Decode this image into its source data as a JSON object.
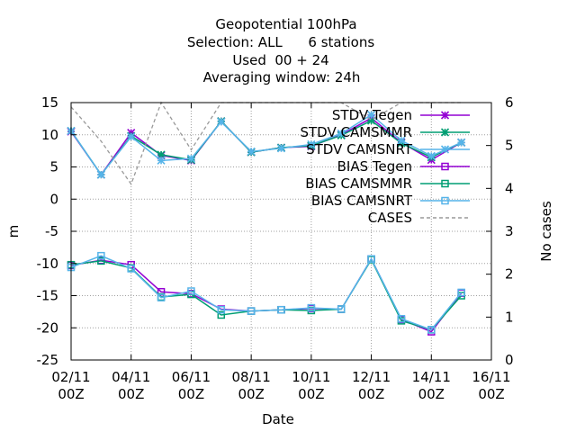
{
  "chart_data": {
    "type": "line",
    "title_lines": [
      "Geopotential 100hPa",
      "Selection: ALL      6 stations",
      "Used  00 + 24",
      "Averaging window: 24h"
    ],
    "xlabel": "Date",
    "ylabel": "m",
    "y2label": "No cases",
    "xlim": [
      0,
      14
    ],
    "ylim": [
      -25,
      15
    ],
    "y2lim": [
      0,
      6
    ],
    "grid": true,
    "legend_position": "top-right",
    "x_ticks": [
      {
        "x": 0,
        "line1": "02/11",
        "line2": "00Z"
      },
      {
        "x": 2,
        "line1": "04/11",
        "line2": "00Z"
      },
      {
        "x": 4,
        "line1": "06/11",
        "line2": "00Z"
      },
      {
        "x": 6,
        "line1": "08/11",
        "line2": "00Z"
      },
      {
        "x": 8,
        "line1": "10/11",
        "line2": "00Z"
      },
      {
        "x": 10,
        "line1": "12/11",
        "line2": "00Z"
      },
      {
        "x": 12,
        "line1": "14/11",
        "line2": "00Z"
      },
      {
        "x": 14,
        "line1": "16/11",
        "line2": "00Z"
      }
    ],
    "y_ticks": [
      15,
      10,
      5,
      0,
      -5,
      -10,
      -15,
      -20,
      -25
    ],
    "y2_ticks": [
      6,
      5,
      4,
      3,
      2,
      1,
      0
    ],
    "x": [
      0,
      1,
      2,
      3,
      4,
      5,
      6,
      7,
      8,
      9,
      10,
      11,
      12,
      13
    ],
    "series": [
      {
        "name": "STDV Tegen",
        "color": "#9400d3",
        "marker": "x",
        "axis": "y1",
        "values": [
          10.5,
          3.8,
          10.3,
          6.8,
          6.0,
          12.1,
          7.3,
          8.0,
          8.2,
          10.0,
          12.6,
          8.8,
          6.1,
          8.8
        ]
      },
      {
        "name": "STDV CAMSMMR",
        "color": "#009e73",
        "marker": "x",
        "axis": "y1",
        "values": [
          10.6,
          3.8,
          9.8,
          6.9,
          6.1,
          12.1,
          7.3,
          8.0,
          8.3,
          9.9,
          12.2,
          8.7,
          6.5,
          8.8
        ]
      },
      {
        "name": "STDV CAMSNRT",
        "color": "#56b4e9",
        "marker": "x",
        "axis": "y1",
        "values": [
          10.6,
          3.8,
          9.7,
          6.0,
          6.3,
          12.0,
          7.4,
          7.9,
          8.5,
          10.2,
          13.1,
          9.1,
          6.7,
          8.8
        ]
      },
      {
        "name": "BIAS Tegen",
        "color": "#9400d3",
        "marker": "square",
        "axis": "y1",
        "values": [
          -10.3,
          -9.5,
          -10.2,
          -14.4,
          -14.7,
          -17.1,
          -17.4,
          -17.2,
          -17.0,
          -17.1,
          -9.3,
          -18.7,
          -20.6,
          -14.6
        ]
      },
      {
        "name": "BIAS CAMSMMR",
        "color": "#009e73",
        "marker": "square",
        "axis": "y1",
        "values": [
          -10.2,
          -9.6,
          -10.7,
          -15.2,
          -14.8,
          -18.0,
          -17.4,
          -17.2,
          -17.3,
          -17.1,
          -9.4,
          -18.9,
          -20.3,
          -15.0
        ]
      },
      {
        "name": "BIAS CAMSNRT",
        "color": "#56b4e9",
        "marker": "square",
        "axis": "y1",
        "values": [
          -10.6,
          -8.8,
          -10.8,
          -15.3,
          -14.3,
          -17.2,
          -17.4,
          -17.2,
          -16.9,
          -17.1,
          -9.3,
          -18.6,
          -20.3,
          -14.5
        ]
      },
      {
        "name": "CASES",
        "color": "#999999",
        "marker": "none",
        "dashed": true,
        "axis": "y2",
        "values": [
          5.9,
          5.1,
          4.1,
          6.0,
          4.9,
          6.0,
          6.0,
          6.0,
          6.0,
          6.0,
          5.6,
          6.0,
          6.0,
          6.0
        ]
      }
    ]
  }
}
